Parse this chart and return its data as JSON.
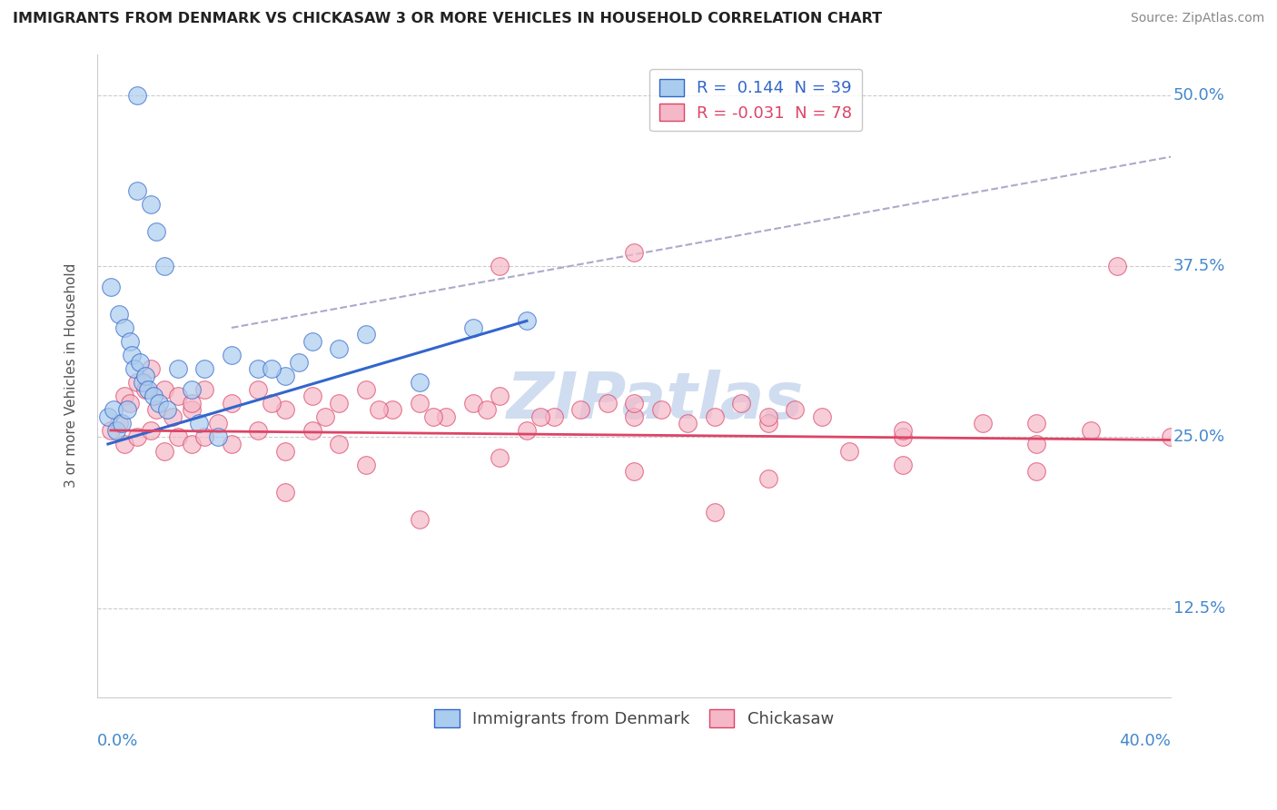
{
  "title": "IMMIGRANTS FROM DENMARK VS CHICKASAW 3 OR MORE VEHICLES IN HOUSEHOLD CORRELATION CHART",
  "source": "Source: ZipAtlas.com",
  "ylabel_label": "3 or more Vehicles in Household",
  "xmin": 0.0,
  "xmax": 40.0,
  "ymin": 6.0,
  "ymax": 53.0,
  "ytick_vals": [
    12.5,
    25.0,
    37.5,
    50.0
  ],
  "blue_color": "#aaccee",
  "pink_color": "#f4b8c8",
  "blue_line_color": "#3366cc",
  "pink_line_color": "#dd4466",
  "gray_dash_color": "#aaaacc",
  "watermark_color": "#d0ddf0",
  "blue_scatter_x": [
    1.5,
    1.5,
    2.0,
    2.2,
    2.5,
    0.5,
    0.8,
    1.0,
    1.2,
    1.3,
    1.4,
    1.6,
    1.7,
    1.8,
    1.9,
    2.1,
    2.3,
    2.6,
    3.0,
    3.5,
    4.0,
    5.0,
    6.0,
    7.0,
    7.5,
    8.0,
    9.0,
    10.0,
    12.0,
    14.0,
    16.0,
    0.4,
    0.6,
    0.7,
    0.9,
    1.1,
    3.8,
    4.5,
    6.5
  ],
  "blue_scatter_y": [
    50.0,
    43.0,
    42.0,
    40.0,
    37.5,
    36.0,
    34.0,
    33.0,
    32.0,
    31.0,
    30.0,
    30.5,
    29.0,
    29.5,
    28.5,
    28.0,
    27.5,
    27.0,
    30.0,
    28.5,
    30.0,
    31.0,
    30.0,
    29.5,
    30.5,
    32.0,
    31.5,
    32.5,
    29.0,
    33.0,
    33.5,
    26.5,
    27.0,
    25.5,
    26.0,
    27.0,
    26.0,
    25.0,
    30.0
  ],
  "pink_scatter_x": [
    1.0,
    1.5,
    2.0,
    2.5,
    3.0,
    3.5,
    4.0,
    5.0,
    6.0,
    7.0,
    8.0,
    9.0,
    10.0,
    11.0,
    12.0,
    13.0,
    14.0,
    15.0,
    16.0,
    17.0,
    18.0,
    19.0,
    20.0,
    21.0,
    22.0,
    23.0,
    24.0,
    25.0,
    26.0,
    27.0,
    0.5,
    0.8,
    1.2,
    1.8,
    2.2,
    2.8,
    3.5,
    4.5,
    6.5,
    8.5,
    10.5,
    12.5,
    14.5,
    16.5,
    1.0,
    1.5,
    2.0,
    2.5,
    3.0,
    3.5,
    4.0,
    5.0,
    6.0,
    7.0,
    8.0,
    9.0,
    30.0,
    35.0,
    37.0,
    20.0,
    25.0,
    30.0,
    35.0,
    40.0,
    15.0,
    20.0,
    7.0,
    12.0,
    23.0,
    28.0,
    33.0,
    38.0,
    10.0,
    15.0,
    20.0,
    25.0,
    30.0,
    35.0
  ],
  "pink_scatter_y": [
    28.0,
    29.0,
    30.0,
    28.5,
    28.0,
    27.0,
    28.5,
    27.5,
    28.5,
    27.0,
    28.0,
    27.5,
    28.5,
    27.0,
    27.5,
    26.5,
    27.5,
    28.0,
    25.5,
    26.5,
    27.0,
    27.5,
    26.5,
    27.0,
    26.0,
    26.5,
    27.5,
    26.0,
    27.0,
    26.5,
    25.5,
    26.0,
    27.5,
    28.5,
    27.0,
    26.5,
    27.5,
    26.0,
    27.5,
    26.5,
    27.0,
    26.5,
    27.0,
    26.5,
    24.5,
    25.0,
    25.5,
    24.0,
    25.0,
    24.5,
    25.0,
    24.5,
    25.5,
    24.0,
    25.5,
    24.5,
    25.0,
    24.5,
    25.5,
    27.5,
    26.5,
    25.5,
    26.0,
    25.0,
    37.5,
    38.5,
    21.0,
    19.0,
    19.5,
    24.0,
    26.0,
    37.5,
    23.0,
    23.5,
    22.5,
    22.0,
    23.0,
    22.5
  ],
  "blue_line_x": [
    0.4,
    16.0
  ],
  "blue_line_y": [
    24.5,
    33.5
  ],
  "pink_line_x": [
    0.5,
    40.0
  ],
  "pink_line_y": [
    25.5,
    24.8
  ],
  "gray_line_x": [
    5.0,
    40.0
  ],
  "gray_line_y": [
    33.0,
    45.5
  ]
}
